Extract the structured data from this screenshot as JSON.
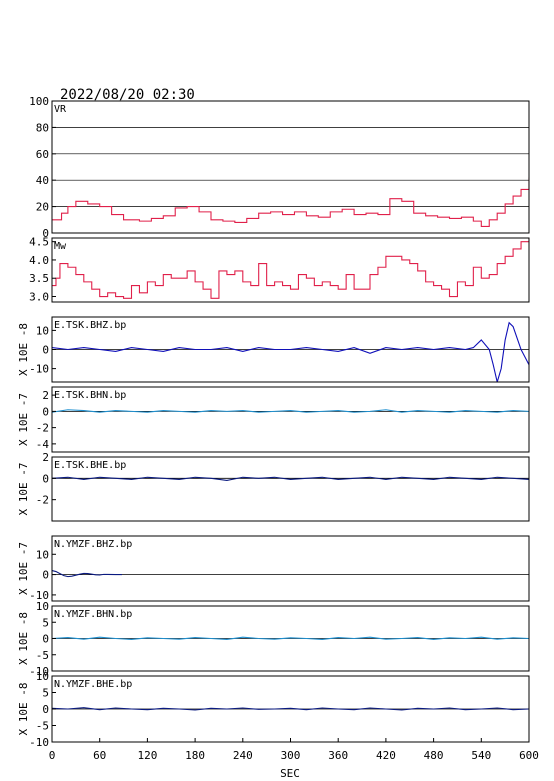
{
  "header": {
    "datetime": "2022/08/20 02:30"
  },
  "chart_data": {
    "type": "line",
    "xlabel": "SEC",
    "x_ticks": [
      0,
      60,
      120,
      180,
      240,
      300,
      360,
      420,
      480,
      540,
      600
    ],
    "xlim": [
      0,
      600
    ],
    "grid_x": false,
    "panels": [
      {
        "id": "vr",
        "label": "VR",
        "ylabel": "",
        "color": "#e0204a",
        "ylim": [
          0,
          100
        ],
        "yticks": [
          0,
          20,
          40,
          60,
          80,
          100
        ],
        "ytick_labels": [
          "0",
          "20",
          "40",
          "60",
          "80",
          "100"
        ],
        "grid_y": true,
        "style": "step",
        "x": [
          0,
          12,
          20,
          30,
          45,
          60,
          75,
          90,
          110,
          125,
          140,
          155,
          170,
          185,
          200,
          215,
          230,
          245,
          260,
          275,
          290,
          305,
          320,
          335,
          350,
          365,
          380,
          395,
          410,
          425,
          440,
          455,
          470,
          485,
          500,
          515,
          530,
          540,
          550,
          560,
          570,
          580,
          590,
          600
        ],
        "y": [
          10,
          15,
          20,
          24,
          22,
          20,
          14,
          10,
          9,
          11,
          13,
          19,
          20,
          16,
          10,
          9,
          8,
          11,
          15,
          16,
          14,
          16,
          13,
          12,
          16,
          18,
          14,
          15,
          14,
          26,
          24,
          15,
          13,
          12,
          11,
          12,
          9,
          5,
          10,
          15,
          22,
          28,
          33,
          42
        ]
      },
      {
        "id": "mw",
        "label": "Mw",
        "ylabel": "",
        "color": "#e0204a",
        "ylim": [
          2.85,
          4.6
        ],
        "yticks": [
          3.0,
          3.5,
          4.0,
          4.5
        ],
        "ytick_labels": [
          "3.0",
          "3.5",
          "4.0",
          "4.5"
        ],
        "grid_y": false,
        "style": "step",
        "x": [
          0,
          5,
          10,
          20,
          30,
          40,
          50,
          60,
          70,
          80,
          90,
          100,
          110,
          120,
          130,
          140,
          150,
          160,
          170,
          180,
          190,
          200,
          210,
          220,
          230,
          240,
          250,
          260,
          270,
          280,
          290,
          300,
          310,
          320,
          330,
          340,
          350,
          360,
          370,
          380,
          390,
          400,
          410,
          420,
          430,
          440,
          450,
          460,
          470,
          480,
          490,
          500,
          510,
          520,
          530,
          540,
          550,
          560,
          570,
          580,
          590,
          600
        ],
        "y": [
          3.3,
          3.5,
          3.9,
          3.8,
          3.6,
          3.4,
          3.2,
          3.0,
          3.1,
          3.0,
          2.95,
          3.3,
          3.1,
          3.4,
          3.3,
          3.6,
          3.5,
          3.5,
          3.7,
          3.4,
          3.2,
          2.95,
          3.7,
          3.6,
          3.7,
          3.4,
          3.3,
          3.9,
          3.3,
          3.4,
          3.3,
          3.2,
          3.6,
          3.5,
          3.3,
          3.4,
          3.3,
          3.2,
          3.6,
          3.2,
          3.2,
          3.6,
          3.8,
          4.1,
          4.1,
          4.0,
          3.9,
          3.7,
          3.4,
          3.3,
          3.2,
          3.0,
          3.4,
          3.3,
          3.8,
          3.5,
          3.6,
          3.9,
          4.1,
          4.3,
          4.5,
          4.6
        ]
      },
      {
        "id": "tsk_bhz",
        "label": "E.TSK.BHZ.bp",
        "ylabel": "X 10E -8",
        "color": "#1010b8",
        "ylim": [
          -17,
          17
        ],
        "yticks": [
          -10,
          0,
          10
        ],
        "ytick_labels": [
          "-10",
          "0",
          "10"
        ],
        "grid_y": false,
        "zero_line": true,
        "style": "line",
        "x": [
          0,
          20,
          40,
          60,
          80,
          100,
          120,
          140,
          160,
          180,
          200,
          220,
          240,
          260,
          280,
          300,
          320,
          340,
          360,
          380,
          400,
          420,
          440,
          460,
          480,
          500,
          520,
          530,
          540,
          550,
          555,
          560,
          565,
          570,
          575,
          580,
          585,
          590,
          595,
          600
        ],
        "y": [
          1,
          0,
          1,
          0,
          -1,
          1,
          0,
          -1,
          1,
          0,
          0,
          1,
          -1,
          1,
          0,
          0,
          1,
          0,
          -1,
          1,
          -2,
          1,
          0,
          1,
          0,
          1,
          0,
          1,
          5,
          0,
          -8,
          -17,
          -10,
          5,
          14,
          12,
          6,
          0,
          -4,
          -8
        ]
      },
      {
        "id": "tsk_bhn",
        "label": "E.TSK.BHN.bp",
        "ylabel": "X 10E -7",
        "color": "#1e90d0",
        "ylim": [
          -5,
          3
        ],
        "yticks": [
          -4,
          -2,
          0,
          2
        ],
        "ytick_labels": [
          "-4",
          "-2",
          "0",
          "2"
        ],
        "grid_y": false,
        "zero_line": true,
        "style": "line",
        "x": [
          0,
          20,
          40,
          60,
          80,
          100,
          120,
          140,
          160,
          180,
          200,
          220,
          240,
          260,
          280,
          300,
          320,
          340,
          360,
          380,
          400,
          420,
          440,
          460,
          480,
          500,
          520,
          540,
          560,
          580,
          600
        ],
        "y": [
          -0.1,
          0.2,
          0.1,
          -0.1,
          0.1,
          0.0,
          -0.1,
          0.1,
          0.0,
          -0.1,
          0.1,
          0.0,
          0.1,
          -0.1,
          0.0,
          0.1,
          -0.1,
          0.0,
          0.1,
          -0.1,
          0.0,
          0.2,
          -0.1,
          0.1,
          0.0,
          -0.1,
          0.1,
          0.0,
          -0.1,
          0.1,
          0.0
        ]
      },
      {
        "id": "tsk_bhe",
        "label": "E.TSK.BHE.bp",
        "ylabel": "X 10E -7",
        "color": "#0a1a80",
        "ylim": [
          -4,
          2
        ],
        "yticks": [
          -2,
          0,
          2
        ],
        "ytick_labels": [
          "-2",
          "0",
          "2"
        ],
        "grid_y": false,
        "zero_line": true,
        "style": "line",
        "x": [
          0,
          20,
          40,
          60,
          80,
          100,
          120,
          140,
          160,
          180,
          200,
          220,
          240,
          260,
          280,
          300,
          320,
          340,
          360,
          380,
          400,
          420,
          440,
          460,
          480,
          500,
          520,
          540,
          560,
          580,
          600
        ],
        "y": [
          0.0,
          0.1,
          -0.1,
          0.1,
          0.0,
          -0.1,
          0.1,
          0.0,
          -0.1,
          0.1,
          0.0,
          -0.2,
          0.1,
          0.0,
          0.1,
          -0.1,
          0.0,
          0.1,
          -0.1,
          0.0,
          0.1,
          -0.1,
          0.1,
          0.0,
          -0.1,
          0.1,
          0.0,
          -0.1,
          0.1,
          0.0,
          -0.1
        ]
      },
      {
        "id": "ymzf_bhz",
        "label": "N.YMZF.BHZ.bp",
        "ylabel": "X 10E -7",
        "color": "#0a1a80",
        "ylim": [
          -13,
          19
        ],
        "yticks": [
          -10,
          0,
          10
        ],
        "ytick_labels": [
          "-10",
          "0",
          "10"
        ],
        "grid_y": false,
        "zero_line": true,
        "style": "line",
        "x": [
          0,
          5,
          10,
          15,
          20,
          25,
          30,
          35,
          40,
          45,
          50,
          55,
          60,
          65,
          70,
          80,
          88
        ],
        "y": [
          2.0,
          1.5,
          0.5,
          -0.5,
          -1.0,
          -0.8,
          -0.3,
          0.2,
          0.6,
          0.5,
          0.2,
          -0.1,
          -0.2,
          0.1,
          0.1,
          0.0,
          0.0
        ]
      },
      {
        "id": "ymzf_bhn",
        "label": "N.YMZF.BHN.bp",
        "ylabel": "X 10E -8",
        "color": "#1e90d0",
        "ylim": [
          -10,
          10
        ],
        "yticks": [
          -10,
          -5,
          0,
          5,
          10
        ],
        "ytick_labels": [
          "-10",
          "-5",
          "0",
          "5",
          "10"
        ],
        "grid_y": false,
        "zero_line": true,
        "style": "line",
        "x": [
          0,
          20,
          40,
          60,
          80,
          100,
          120,
          140,
          160,
          180,
          200,
          220,
          240,
          260,
          280,
          300,
          320,
          340,
          360,
          380,
          400,
          420,
          440,
          460,
          480,
          500,
          520,
          540,
          560,
          580,
          600
        ],
        "y": [
          0.0,
          0.3,
          -0.2,
          0.4,
          0.0,
          -0.3,
          0.2,
          0.0,
          -0.2,
          0.3,
          0.0,
          -0.3,
          0.4,
          0.0,
          -0.2,
          0.2,
          0.0,
          -0.3,
          0.3,
          0.0,
          0.4,
          -0.2,
          0.0,
          0.3,
          -0.3,
          0.2,
          0.0,
          0.4,
          -0.2,
          0.2,
          0.0
        ]
      },
      {
        "id": "ymzf_bhe",
        "label": "N.YMZF.BHE.bp",
        "ylabel": "X 10E -8",
        "color": "#0a1a80",
        "ylim": [
          -10,
          10
        ],
        "yticks": [
          -10,
          -5,
          0,
          5,
          10
        ],
        "ytick_labels": [
          "-10",
          "-5",
          "0",
          "5",
          "10"
        ],
        "grid_y": false,
        "zero_line": true,
        "style": "line",
        "x": [
          0,
          20,
          40,
          60,
          80,
          100,
          120,
          140,
          160,
          180,
          200,
          220,
          240,
          260,
          280,
          300,
          320,
          340,
          360,
          380,
          400,
          420,
          440,
          460,
          480,
          500,
          520,
          540,
          560,
          580,
          600
        ],
        "y": [
          0.2,
          0.0,
          0.4,
          -0.2,
          0.3,
          0.0,
          -0.2,
          0.2,
          0.0,
          -0.3,
          0.2,
          0.0,
          0.3,
          -0.1,
          0.0,
          0.2,
          -0.2,
          0.3,
          0.0,
          -0.2,
          0.3,
          0.0,
          -0.3,
          0.2,
          0.0,
          0.3,
          -0.2,
          0.0,
          0.3,
          -0.2,
          0.0
        ]
      }
    ]
  }
}
